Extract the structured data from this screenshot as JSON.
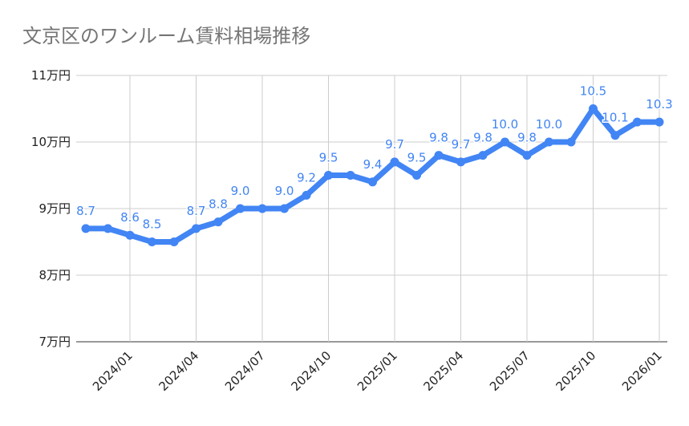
{
  "chart_data": {
    "type": "line",
    "title": "文京区のワンルーム賃料相場推移",
    "xlabel": "",
    "ylabel": "",
    "ylim": [
      7,
      11
    ],
    "yticks": [
      "7万円",
      "8万円",
      "9万円",
      "10万円",
      "11万円"
    ],
    "ytick_values": [
      7,
      8,
      9,
      10,
      11
    ],
    "xticks": [
      "2024/01",
      "2024/04",
      "2024/07",
      "2024/10",
      "2025/01",
      "2025/04",
      "2025/07",
      "2025/10",
      "2026/01"
    ],
    "x": [
      "2023/11",
      "2023/12",
      "2024/01",
      "2024/02",
      "2024/03",
      "2024/04",
      "2024/05",
      "2024/06",
      "2024/07",
      "2024/08",
      "2024/09",
      "2024/10",
      "2024/11",
      "2024/12",
      "2025/01",
      "2025/02",
      "2025/03",
      "2025/04",
      "2025/05",
      "2025/06",
      "2025/07",
      "2025/08",
      "2025/09",
      "2025/10",
      "2025/11",
      "2025/12",
      "2026/01"
    ],
    "values": [
      8.7,
      8.7,
      8.6,
      8.5,
      8.5,
      8.7,
      8.8,
      9.0,
      9.0,
      9.0,
      9.2,
      9.5,
      9.5,
      9.4,
      9.7,
      9.5,
      9.8,
      9.7,
      9.8,
      10.0,
      9.8,
      10.0,
      10.0,
      10.5,
      10.1,
      10.3,
      10.3
    ],
    "data_labels": [
      "8.7",
      "",
      "8.6",
      "8.5",
      "",
      "8.7",
      "8.8",
      "9.0",
      "",
      "9.0",
      "9.2",
      "9.5",
      "",
      "9.4",
      "9.7",
      "9.5",
      "9.8",
      "9.7",
      "9.8",
      "10.0",
      "9.8",
      "10.0",
      "",
      "10.5",
      "10.1",
      "",
      "10.3"
    ],
    "grid": true,
    "legend": "none",
    "line_color": "#4285f4"
  }
}
